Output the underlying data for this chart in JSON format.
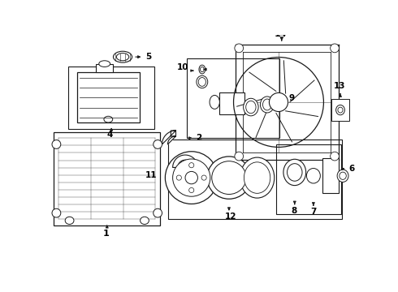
{
  "bg_color": "#ffffff",
  "line_color": "#1a1a1a",
  "label_color": "#000000",
  "fig_w": 4.9,
  "fig_h": 3.6,
  "dpi": 100
}
